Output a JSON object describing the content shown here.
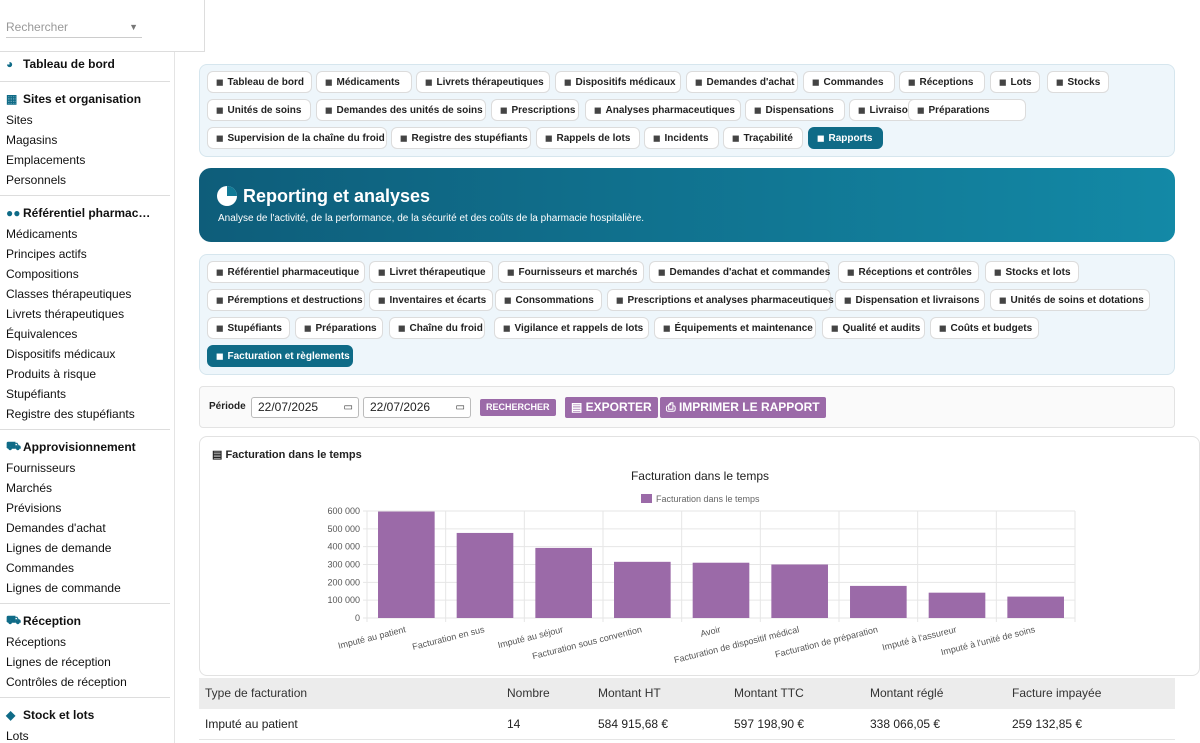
{
  "search": {
    "placeholder": "Rechercher"
  },
  "sidebar": {
    "dashboard": "Tableau de bord",
    "sections": [
      {
        "title": "Sites et organisation",
        "icon": "building-icon",
        "items": [
          "Sites",
          "Magasins",
          "Emplacements",
          "Personnels"
        ]
      },
      {
        "title": "Référentiel pharmac…",
        "icon": "pills-icon",
        "items": [
          "Médicaments",
          "Principes actifs",
          "Compositions",
          "Classes thérapeutiques",
          "Livrets thérapeutiques",
          "Équivalences",
          "Dispositifs médicaux",
          "Produits à risque",
          "Stupéfiants",
          "Registre des stupéfiants"
        ]
      },
      {
        "title": "Approvisionnement",
        "icon": "cart-icon",
        "items": [
          "Fournisseurs",
          "Marchés",
          "Prévisions",
          "Demandes d'achat",
          "Lignes de demande",
          "Commandes",
          "Lignes de commande"
        ]
      },
      {
        "title": "Réception",
        "icon": "truck-loading-icon",
        "items": [
          "Réceptions",
          "Lignes de réception",
          "Contrôles de réception"
        ]
      },
      {
        "title": "Stock et lots",
        "icon": "cubes-icon",
        "items": [
          "Lots"
        ]
      }
    ]
  },
  "modules": [
    "Tableau de bord",
    "Médicaments",
    "Livrets thérapeutiques",
    "Dispositifs médicaux",
    "Demandes d'achat",
    "Commandes",
    "Réceptions",
    "Lots",
    "Stocks",
    "Unités de soins",
    "Demandes des unités de soins",
    "Prescriptions",
    "Analyses pharmaceutiques",
    "Dispensations",
    "Livraisons",
    "Préparations",
    "Supervision de la chaîne du froid",
    "Registre des stupéfiants",
    "Rappels de lots",
    "Incidents",
    "Traçabilité",
    "Rapports"
  ],
  "banner": {
    "title": "Reporting et analyses",
    "subtitle": "Analyse de l'activité, de la performance, de la sécurité et des coûts de la pharmacie hospitalière."
  },
  "report_tabs": [
    "Référentiel pharmaceutique",
    "Livret thérapeutique",
    "Fournisseurs et marchés",
    "Demandes d'achat et commandes",
    "Réceptions et contrôles",
    "Stocks et lots",
    "Péremptions et destructions",
    "Inventaires et écarts",
    "Consommations",
    "Prescriptions et analyses pharmaceutiques",
    "Dispensation et livraisons",
    "Unités de soins et dotations",
    "Stupéfiants",
    "Préparations",
    "Chaîne du froid",
    "Vigilance et rappels de lots",
    "Équipements et maintenance",
    "Qualité et audits",
    "Coûts et budgets",
    "Facturation et règlements"
  ],
  "filters": {
    "period_label": "Période",
    "date_from": "22/07/2025",
    "date_to": "22/07/2026",
    "search_btn": "RECHERCHER",
    "export_btn": "EXPORTER",
    "print_btn": "IMPRIMER LE RAPPORT"
  },
  "card": {
    "title": "Facturation dans le temps"
  },
  "chart_data": {
    "type": "bar",
    "title": "Facturation dans le temps",
    "categories": [
      "Imputé au patient",
      "Facturation en sus",
      "Imputé au séjour",
      "Facturation sous convention",
      "Avoir",
      "Facturation de dispositif médical",
      "Facturation de préparation",
      "Imputé à l'assureur",
      "Imputé à l'unité de soins"
    ],
    "series": [
      {
        "name": "Facturation dans le temps",
        "values": [
          597000,
          477000,
          393000,
          315000,
          310000,
          300000,
          180000,
          142000,
          120000
        ]
      }
    ],
    "ylim": [
      0,
      600000
    ],
    "yticks": [
      "600 000",
      "500 000",
      "400 000",
      "300 000",
      "200 000",
      "100 000",
      "0"
    ],
    "color": "#9b6aa8",
    "legend": "top"
  },
  "table": {
    "headers": [
      "Type de facturation",
      "Nombre",
      "Montant HT",
      "Montant TTC",
      "Montant réglé",
      "Facture impayée"
    ],
    "rows": [
      [
        "Imputé au patient",
        "14",
        "584 915,68 €",
        "597 198,90 €",
        "338 066,05 €",
        "259 132,85 €"
      ]
    ]
  }
}
